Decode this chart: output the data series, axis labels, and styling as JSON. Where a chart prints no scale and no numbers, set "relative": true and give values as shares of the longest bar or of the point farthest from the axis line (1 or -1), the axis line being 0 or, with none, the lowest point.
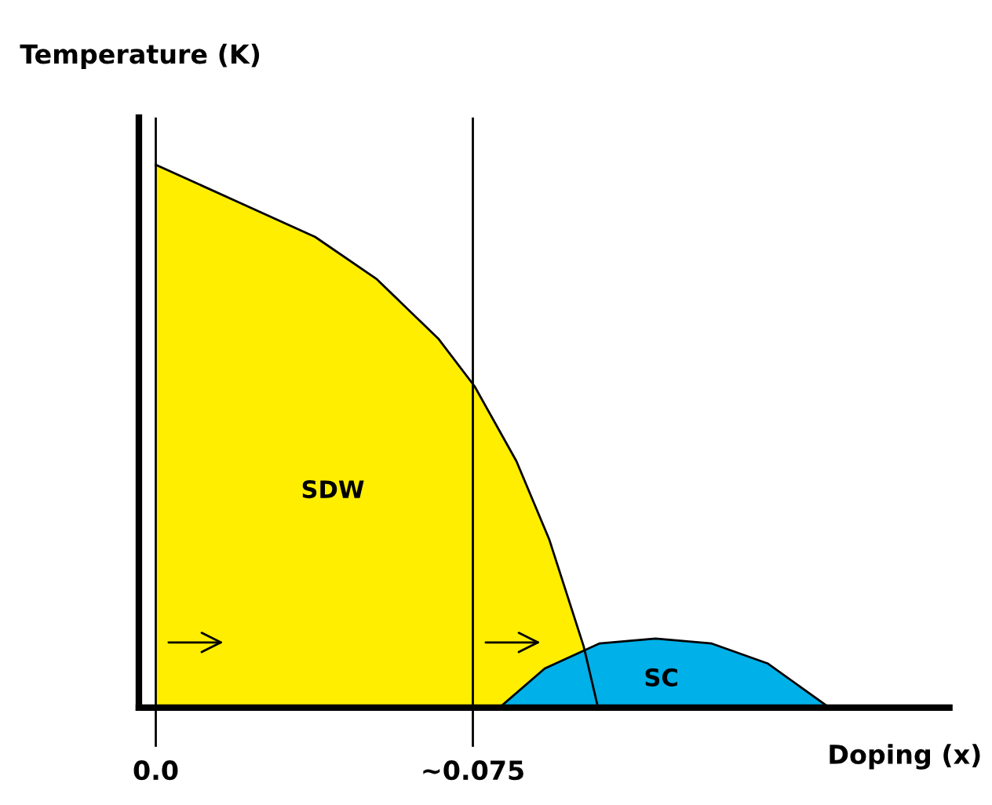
{
  "chart_data": {
    "type": "area",
    "relative": true,
    "ylabel": "Temperature (K)",
    "xlabel": "Doping (x)",
    "xlim": [
      -0.004,
      0.1877
    ],
    "xticks": [
      {
        "value": 0,
        "label": "0.0"
      },
      {
        "value": 0.075,
        "label": "~0.075"
      }
    ],
    "ref_lines": [
      {
        "axis": "x",
        "value": 0,
        "color": "#000000"
      },
      {
        "axis": "x",
        "value": 0.075,
        "color": "#000000"
      }
    ],
    "series": [
      {
        "name": "SDW",
        "color": "#ffee00",
        "x": [
          0,
          0.0377,
          0.0523,
          0.0669,
          0.0754,
          0.0853,
          0.0931,
          0.1012,
          0.1046
        ],
        "values": [
          1.0,
          0.867,
          0.789,
          0.679,
          0.592,
          0.454,
          0.309,
          0.113,
          0
        ]
      },
      {
        "name": "SC",
        "color": "#00b0e8",
        "x": [
          0.0813,
          0.092,
          0.1049,
          0.1182,
          0.1315,
          0.1448,
          0.1593
        ],
        "values": [
          0,
          0.072,
          0.118,
          0.127,
          0.118,
          0.081,
          0
        ]
      }
    ],
    "grid": false,
    "legend": false
  }
}
